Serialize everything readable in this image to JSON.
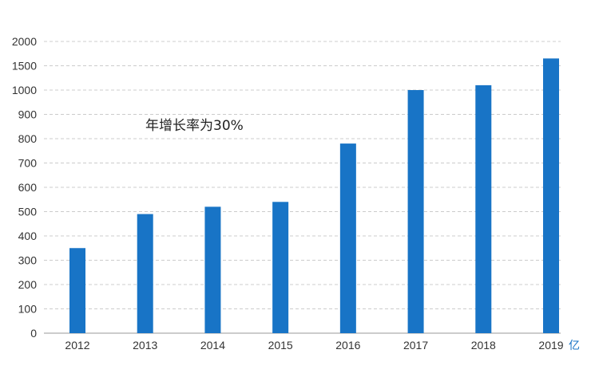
{
  "chart_data": {
    "type": "bar",
    "categories": [
      "2012",
      "2013",
      "2014",
      "2015",
      "2016",
      "2017",
      "2018",
      "2019"
    ],
    "series": [
      {
        "values": [
          350,
          490,
          520,
          540,
          780,
          1000,
          1100,
          1650
        ]
      }
    ],
    "ytick_labels": [
      "0",
      "100",
      "200",
      "300",
      "400",
      "500",
      "600",
      "700",
      "800",
      "900",
      "1000",
      "1500",
      "2000"
    ],
    "annotation": "年增长率为30%",
    "unit": "亿",
    "grid": true,
    "legend": "none",
    "colors": {
      "bar": "#1874c6",
      "grid": "#cccccc",
      "axis": "#999999",
      "unit": "#1874c6"
    }
  }
}
